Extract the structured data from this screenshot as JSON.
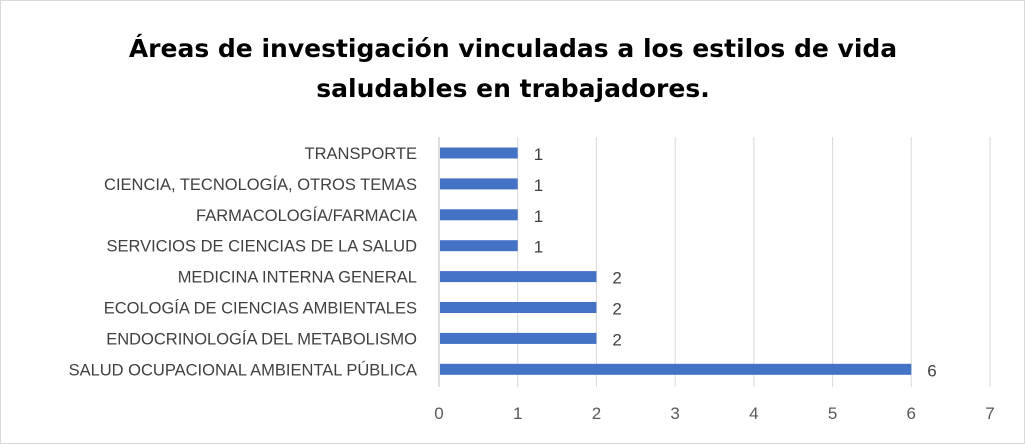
{
  "chart_data": {
    "type": "bar",
    "orientation": "horizontal",
    "title_lines": [
      "Áreas de investigación vinculadas a los estilos de vida",
      "saludables en trabajadores."
    ],
    "categories": [
      "TRANSPORTE",
      "CIENCIA, TECNOLOGÍA, OTROS TEMAS",
      "FARMACOLOGÍA/FARMACIA",
      "SERVICIOS DE CIENCIAS DE LA SALUD",
      "MEDICINA INTERNA GENERAL",
      "ECOLOGÍA DE CIENCIAS AMBIENTALES",
      "ENDOCRINOLOGÍA DEL METABOLISMO",
      "SALUD OCUPACIONAL AMBIENTAL PÚBLICA"
    ],
    "values": [
      1,
      1,
      1,
      1,
      2,
      2,
      2,
      6
    ],
    "x_ticks": [
      0,
      1,
      2,
      3,
      4,
      5,
      6,
      7
    ],
    "xlim": [
      0,
      7
    ],
    "xlabel": "",
    "ylabel": "",
    "grid": "vertical",
    "legend": "none",
    "data_labels": true,
    "bar_color": "#4472c4"
  }
}
